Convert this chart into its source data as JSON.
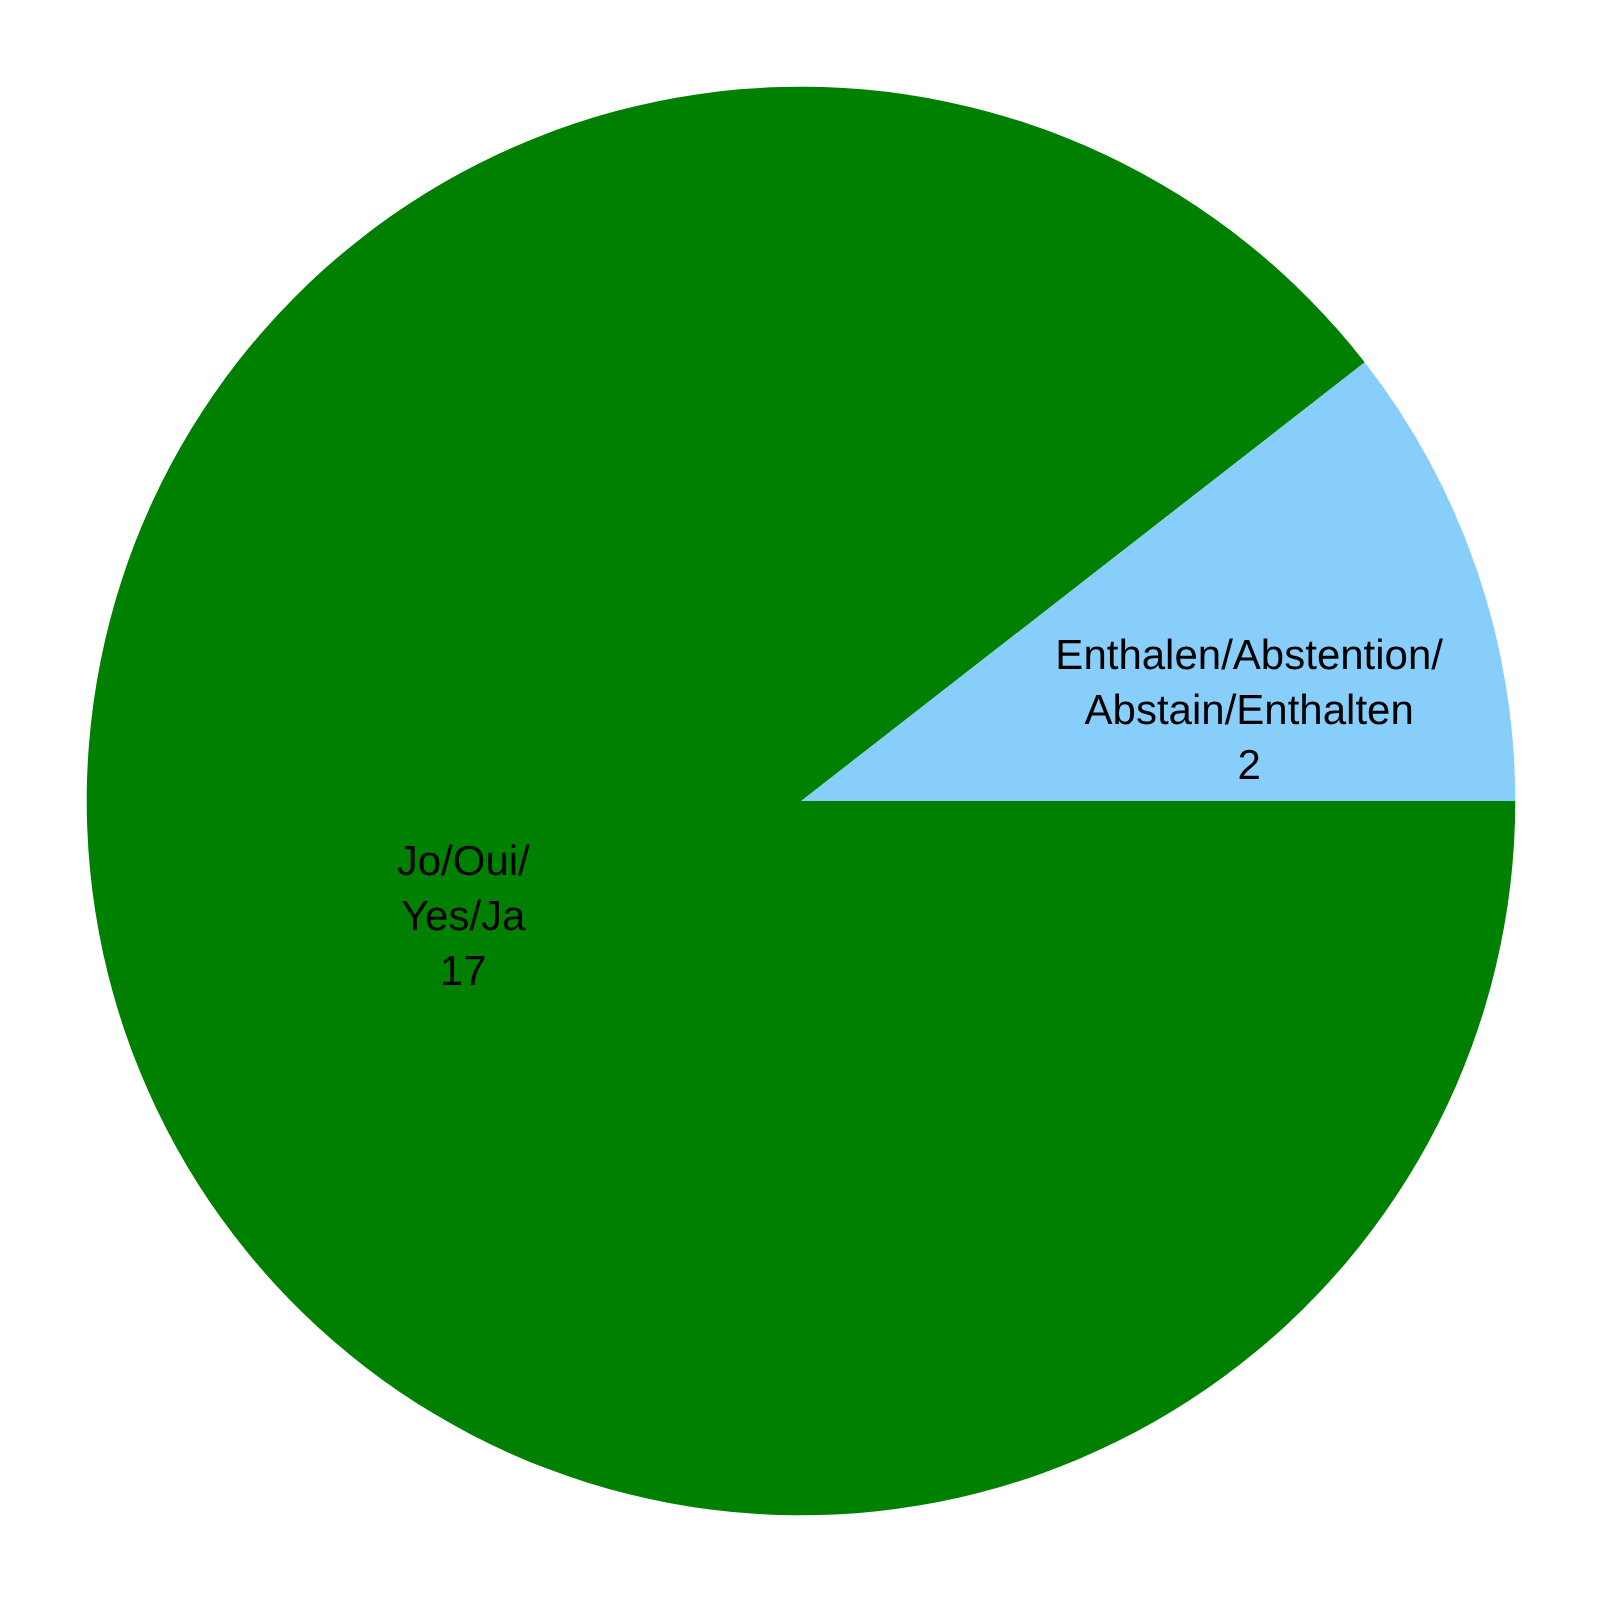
{
  "chart_data": {
    "type": "pie",
    "categories": [
      "Enthalen/Abstention/Abstain/Enthalten",
      "Jo/Oui/Yes/Ja"
    ],
    "values": [
      2,
      17
    ],
    "colors": [
      "#87cefa",
      "#008000"
    ],
    "data_labels": true
  }
}
